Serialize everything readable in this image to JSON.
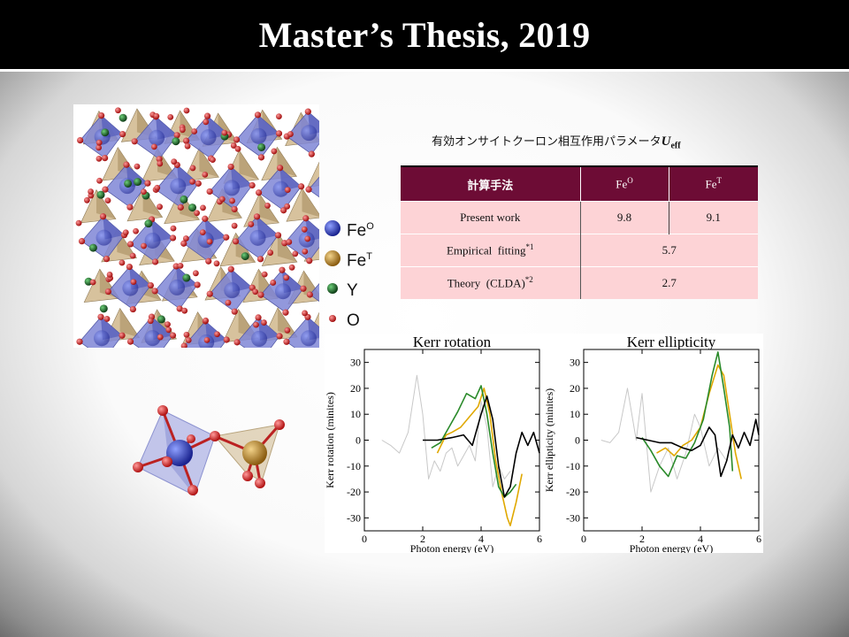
{
  "title": "Master’s Thesis, 2019",
  "legend": [
    {
      "sym": "Fe",
      "sup": "O",
      "color": "#2433a8"
    },
    {
      "sym": "Fe",
      "sup": "T",
      "color": "#b88422"
    },
    {
      "sym": "Y",
      "sup": "",
      "color": "#1d6b2a"
    },
    {
      "sym": "O",
      "sup": "",
      "color": "#d42020"
    }
  ],
  "table": {
    "caption_text": "有効オンサイトクーロン相互作用パラメータ",
    "caption_symbol": "U",
    "caption_sub": "eff",
    "headers": {
      "method": "計算手法",
      "fe_o": "Fe",
      "fe_o_sup": "O",
      "fe_t": "Fe",
      "fe_t_sup": "T"
    },
    "rows": [
      {
        "method": "Present work",
        "sup": "",
        "fe_o": "9.8",
        "fe_t": "9.1"
      },
      {
        "method": "Empirical  fitting",
        "sup": "*1",
        "value": "5.7"
      },
      {
        "method": "Theory  (CLDA)",
        "sup": "*2",
        "value": "2.7"
      }
    ]
  },
  "chart_data": [
    {
      "type": "line",
      "title": "Kerr rotation",
      "xlabel": "Photon energy (eV)",
      "ylabel": "Kerr rotation (minites)",
      "xlim": [
        0,
        6
      ],
      "ylim": [
        -35,
        35
      ],
      "xticks": [
        0,
        2,
        4,
        6
      ],
      "yticks": [
        30,
        20,
        10,
        0,
        -10,
        -20,
        -30
      ],
      "legend": "none",
      "series": [
        {
          "color": "#c8c8c8",
          "x": [
            0.6,
            0.9,
            1.2,
            1.5,
            1.8,
            2.0,
            2.2,
            2.4,
            2.6,
            2.8,
            3.0,
            3.2,
            3.4,
            3.6,
            3.8,
            4.0,
            4.2,
            4.4,
            4.6,
            4.8,
            5.0
          ],
          "y": [
            0,
            -2,
            -5,
            3,
            25,
            10,
            -15,
            -8,
            -12,
            -5,
            -3,
            -10,
            -6,
            -2,
            -8,
            15,
            5,
            -18,
            -10,
            -15,
            -12
          ]
        },
        {
          "color": "#e0a800",
          "x": [
            2.5,
            2.8,
            3.0,
            3.3,
            3.6,
            3.9,
            4.1,
            4.3,
            4.5,
            4.7,
            4.9,
            5.0,
            5.2,
            5.4
          ],
          "y": [
            -5,
            2,
            3,
            5,
            9,
            13,
            20,
            10,
            -8,
            -20,
            -30,
            -33,
            -24,
            -13
          ]
        },
        {
          "color": "#2a8a2a",
          "x": [
            2.3,
            2.6,
            2.9,
            3.2,
            3.5,
            3.8,
            4.0,
            4.2,
            4.4,
            4.6,
            4.8,
            5.0,
            5.2
          ],
          "y": [
            -3,
            -1,
            5,
            11,
            18,
            16,
            21,
            10,
            -5,
            -18,
            -22,
            -20,
            -17
          ]
        },
        {
          "color": "#000000",
          "x": [
            2.0,
            2.5,
            3.0,
            3.4,
            3.7,
            4.0,
            4.2,
            4.4,
            4.6,
            4.8,
            5.0,
            5.2,
            5.4,
            5.6,
            5.8,
            6.0
          ],
          "y": [
            0,
            0,
            1,
            2,
            -2,
            10,
            17,
            8,
            -10,
            -22,
            -18,
            -5,
            3,
            -2,
            3,
            -5
          ]
        }
      ]
    },
    {
      "type": "line",
      "title": "Kerr ellipticity",
      "xlabel": "Photon energy (eV)",
      "ylabel": "Kerr ellipticity (minites)",
      "xlim": [
        0,
        6
      ],
      "ylim": [
        -35,
        35
      ],
      "xticks": [
        0,
        2,
        4,
        6
      ],
      "yticks": [
        30,
        20,
        10,
        0,
        -10,
        -20,
        -30
      ],
      "legend": "none",
      "series": [
        {
          "color": "#c8c8c8",
          "x": [
            0.6,
            0.9,
            1.2,
            1.5,
            1.8,
            2.0,
            2.3,
            2.6,
            2.9,
            3.2,
            3.5,
            3.8,
            4.0,
            4.3,
            4.6,
            4.9
          ],
          "y": [
            0,
            -1,
            3,
            20,
            0,
            18,
            -20,
            -10,
            -3,
            -15,
            -5,
            10,
            5,
            -10,
            -3,
            -8
          ]
        },
        {
          "color": "#e0a800",
          "x": [
            2.5,
            2.8,
            3.1,
            3.4,
            3.7,
            4.0,
            4.3,
            4.6,
            4.8,
            5.0,
            5.2,
            5.4
          ],
          "y": [
            -5,
            -3,
            -6,
            -2,
            0,
            5,
            18,
            29,
            25,
            10,
            -5,
            -15
          ]
        },
        {
          "color": "#2a8a2a",
          "x": [
            2.0,
            2.3,
            2.6,
            2.9,
            3.2,
            3.5,
            3.8,
            4.1,
            4.4,
            4.6,
            4.8,
            5.0,
            5.1
          ],
          "y": [
            1,
            -4,
            -10,
            -14,
            -6,
            -7,
            -1,
            8,
            25,
            34,
            20,
            5,
            -12
          ]
        },
        {
          "color": "#000000",
          "x": [
            1.8,
            2.2,
            2.6,
            3.0,
            3.4,
            3.7,
            4.0,
            4.3,
            4.5,
            4.7,
            4.9,
            5.1,
            5.3,
            5.5,
            5.7,
            5.9,
            6.0
          ],
          "y": [
            1,
            0,
            -1,
            -1,
            -3,
            -4,
            -2,
            5,
            2,
            -14,
            -8,
            2,
            -3,
            3,
            -2,
            8,
            2
          ]
        }
      ]
    }
  ]
}
